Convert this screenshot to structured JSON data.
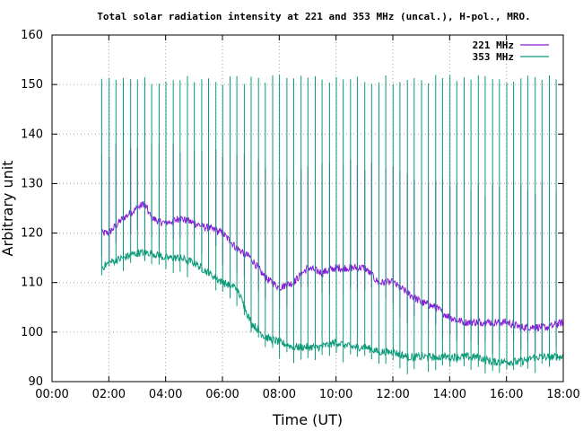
{
  "chart_data": {
    "type": "line",
    "title": "Total solar radiation intensity at 221 and 353 MHz (uncal.), H-pol., MRO.",
    "xlabel": "Time (UT)",
    "ylabel": "Arbitrary unit",
    "xlim": [
      "00:00",
      "18:00"
    ],
    "ylim": [
      90,
      160
    ],
    "x_ticks": [
      "00:00",
      "02:00",
      "04:00",
      "06:00",
      "08:00",
      "10:00",
      "12:00",
      "14:00",
      "16:00",
      "18:00"
    ],
    "y_ticks": [
      "90",
      "100",
      "110",
      "120",
      "130",
      "140",
      "150",
      "160"
    ],
    "grid": true,
    "legend_position": "top-right",
    "calibration_spike_interval_minutes": 15,
    "series": [
      {
        "name": "221 MHz",
        "color": "#8b1adb",
        "x": [
          "01:45",
          "02:00",
          "02:30",
          "03:00",
          "03:15",
          "03:30",
          "04:00",
          "04:30",
          "05:00",
          "05:30",
          "06:00",
          "06:30",
          "07:00",
          "07:30",
          "08:00",
          "08:30",
          "09:00",
          "09:30",
          "10:00",
          "10:30",
          "11:00",
          "11:30",
          "12:00",
          "12:30",
          "13:00",
          "13:30",
          "14:00",
          "14:30",
          "15:00",
          "15:30",
          "16:00",
          "16:30",
          "17:00",
          "17:30",
          "18:00"
        ],
        "values": [
          120,
          120,
          123,
          125,
          126,
          123,
          122,
          123,
          122,
          121,
          120,
          117,
          115,
          111,
          109,
          110,
          113,
          112,
          113,
          113,
          113,
          110,
          110,
          108,
          106,
          105,
          103,
          102,
          102,
          102,
          102,
          101,
          101,
          101,
          102
        ]
      },
      {
        "name": "353 MHz",
        "color": "#0d9a7a",
        "x": [
          "01:45",
          "02:00",
          "02:30",
          "03:00",
          "03:15",
          "03:30",
          "04:00",
          "04:30",
          "05:00",
          "05:30",
          "06:00",
          "06:30",
          "07:00",
          "07:30",
          "08:00",
          "08:30",
          "09:00",
          "09:30",
          "10:00",
          "10:30",
          "11:00",
          "11:30",
          "12:00",
          "12:30",
          "13:00",
          "13:30",
          "14:00",
          "14:30",
          "15:00",
          "15:30",
          "16:00",
          "16:30",
          "17:00",
          "17:30",
          "18:00"
        ],
        "values": [
          113,
          114,
          115,
          116,
          116,
          116,
          115,
          115,
          114,
          112,
          110,
          109,
          102,
          99,
          98,
          97,
          97,
          97,
          98,
          97,
          97,
          96,
          96,
          95,
          95,
          95,
          95,
          95,
          95,
          94,
          94,
          94,
          95,
          95,
          95
        ]
      }
    ]
  }
}
